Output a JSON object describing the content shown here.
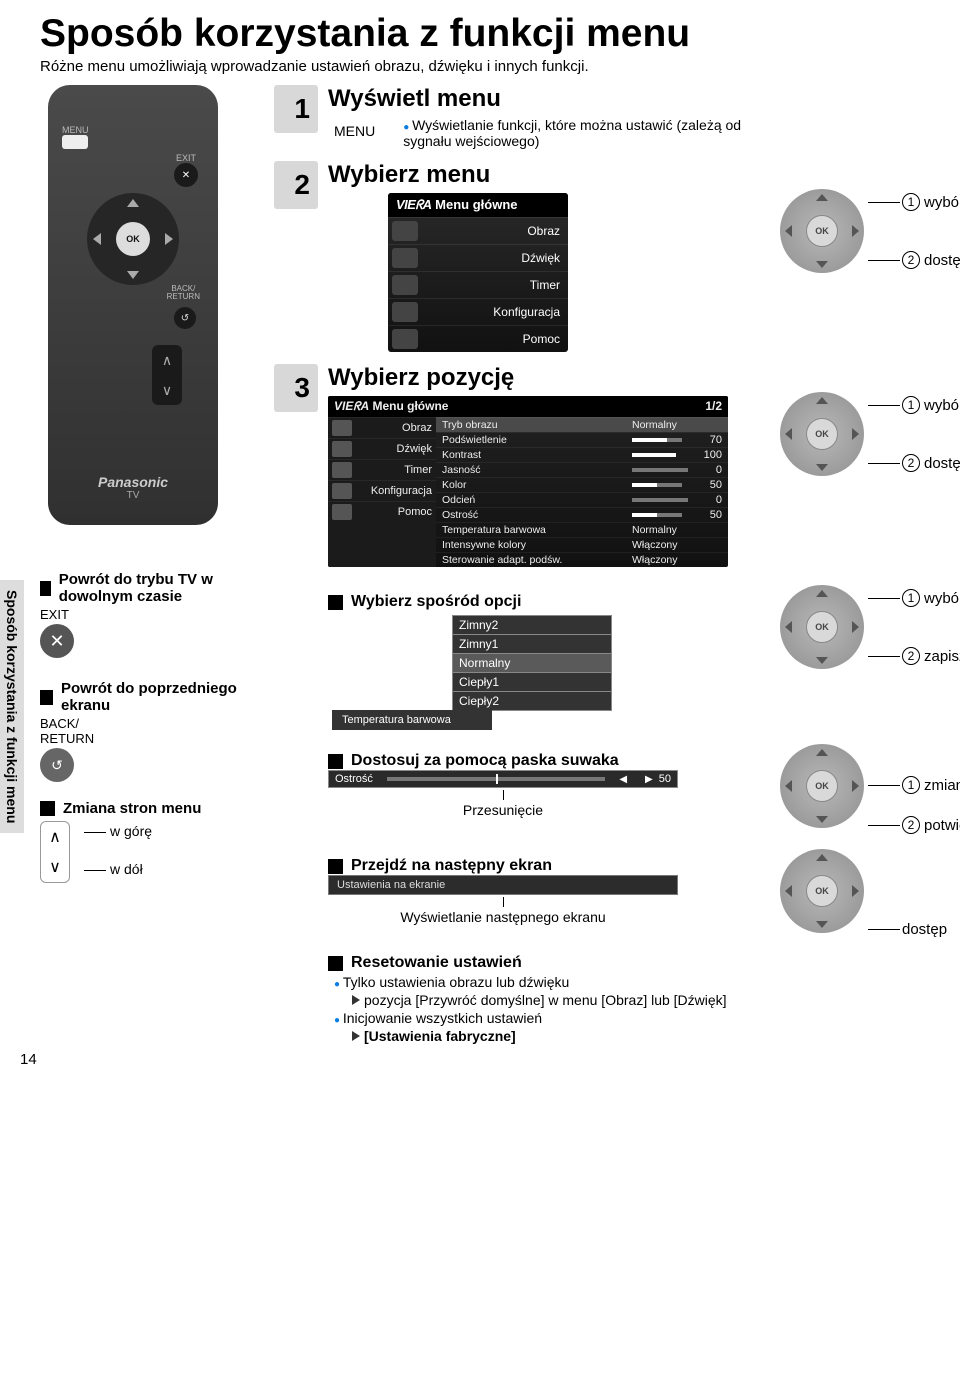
{
  "page": {
    "title": "Sposób korzystania z funkcji menu",
    "subtitle": "Różne menu umożliwiają wprowadzanie ustawień obrazu, dźwięku i innych funkcji.",
    "sidebar_label": "Sposób korzystania z funkcji menu",
    "page_number": "14"
  },
  "remote": {
    "menu_label": "MENU",
    "exit_label": "EXIT",
    "ok_label": "OK",
    "back_label": "BACK/\nRETURN",
    "brand": "Panasonic",
    "tv": "TV"
  },
  "steps": {
    "s1": {
      "num": "1",
      "title": "Wyświetl menu",
      "menu_label": "MENU",
      "desc": "Wyświetlanie funkcji, które można ustawić (zależą od sygnału wejściowego)"
    },
    "s2": {
      "num": "2",
      "title": "Wybierz menu"
    },
    "s3": {
      "num": "3",
      "title": "Wybierz pozycję"
    }
  },
  "annot": {
    "wybor": "wybór",
    "dostep": "dostęp",
    "zapisz": "zapisz",
    "zmiana": "zmiana",
    "potwierdz": "potwierdź"
  },
  "circled": {
    "1": "1",
    "2": "2"
  },
  "viera_menu": {
    "header_brand": "VIEᖇA",
    "header": "Menu główne",
    "items": [
      "Obraz",
      "Dźwięk",
      "Timer",
      "Konfiguracja",
      "Pomoc"
    ]
  },
  "detail_panel": {
    "header_brand": "VIEᖇA",
    "header": "Menu główne",
    "page": "1/2",
    "side": [
      "Obraz",
      "Dźwięk",
      "Timer",
      "Konfiguracja",
      "Pomoc"
    ],
    "rows": [
      {
        "label": "Tryb obrazu",
        "value": "Normalny",
        "type": "text",
        "selected": true
      },
      {
        "label": "Podświetlenie",
        "value": "70",
        "type": "bar",
        "pct": 70
      },
      {
        "label": "Kontrast",
        "value": "100",
        "type": "bar",
        "pct": 100
      },
      {
        "label": "Jasność",
        "value": "0",
        "type": "bar",
        "pct": 0
      },
      {
        "label": "Kolor",
        "value": "50",
        "type": "bar",
        "pct": 50
      },
      {
        "label": "Odcień",
        "value": "0",
        "type": "bar",
        "pct": 0
      },
      {
        "label": "Ostrość",
        "value": "50",
        "type": "bar",
        "pct": 50
      },
      {
        "label": "Temperatura barwowa",
        "value": "Normalny",
        "type": "text"
      },
      {
        "label": "Intensywne kolory",
        "value": "Włączony",
        "type": "text"
      },
      {
        "label": "Sterowanie adapt. podśw.",
        "value": "Włączony",
        "type": "text"
      }
    ]
  },
  "leftcol": {
    "exit_title": "Powrót do trybu TV w dowolnym czasie",
    "exit_label": "EXIT",
    "back_title": "Powrót do poprzedniego ekranu",
    "back_label": "BACK/\nRETURN",
    "pages_title": "Zmiana stron menu",
    "up_label": "w górę",
    "down_label": "w dół"
  },
  "opts": {
    "title": "Wybierz spośród opcji",
    "left_label": "Temperatura barwowa",
    "list": [
      "Zimny2",
      "Zimny1",
      "Normalny",
      "Ciepły1",
      "Ciepły2"
    ],
    "selected": "Normalny"
  },
  "slider": {
    "title": "Dostosuj za pomocą paska suwaka",
    "label": "Ostrość",
    "value": "50",
    "pct": 50,
    "caption": "Przesunięcie"
  },
  "nextscreen": {
    "title": "Przejdź na następny ekran",
    "stripe": "Ustawienia na ekranie",
    "caption": "Wyświetlanie następnego ekranu"
  },
  "reset": {
    "title": "Resetowanie ustawień",
    "l1": "Tylko ustawienia obrazu lub dźwięku",
    "l2": "pozycja [Przywróć domyślne] w menu [Obraz] lub [Dźwięk]",
    "l3": "Inicjowanie wszystkich ustawień",
    "l4": "[Ustawienia fabryczne]"
  },
  "colors": {
    "step_bg": "#d8d8d8",
    "bullet": "#0a7de3",
    "panel_bg": "#222222",
    "panel_border": "#888888"
  }
}
